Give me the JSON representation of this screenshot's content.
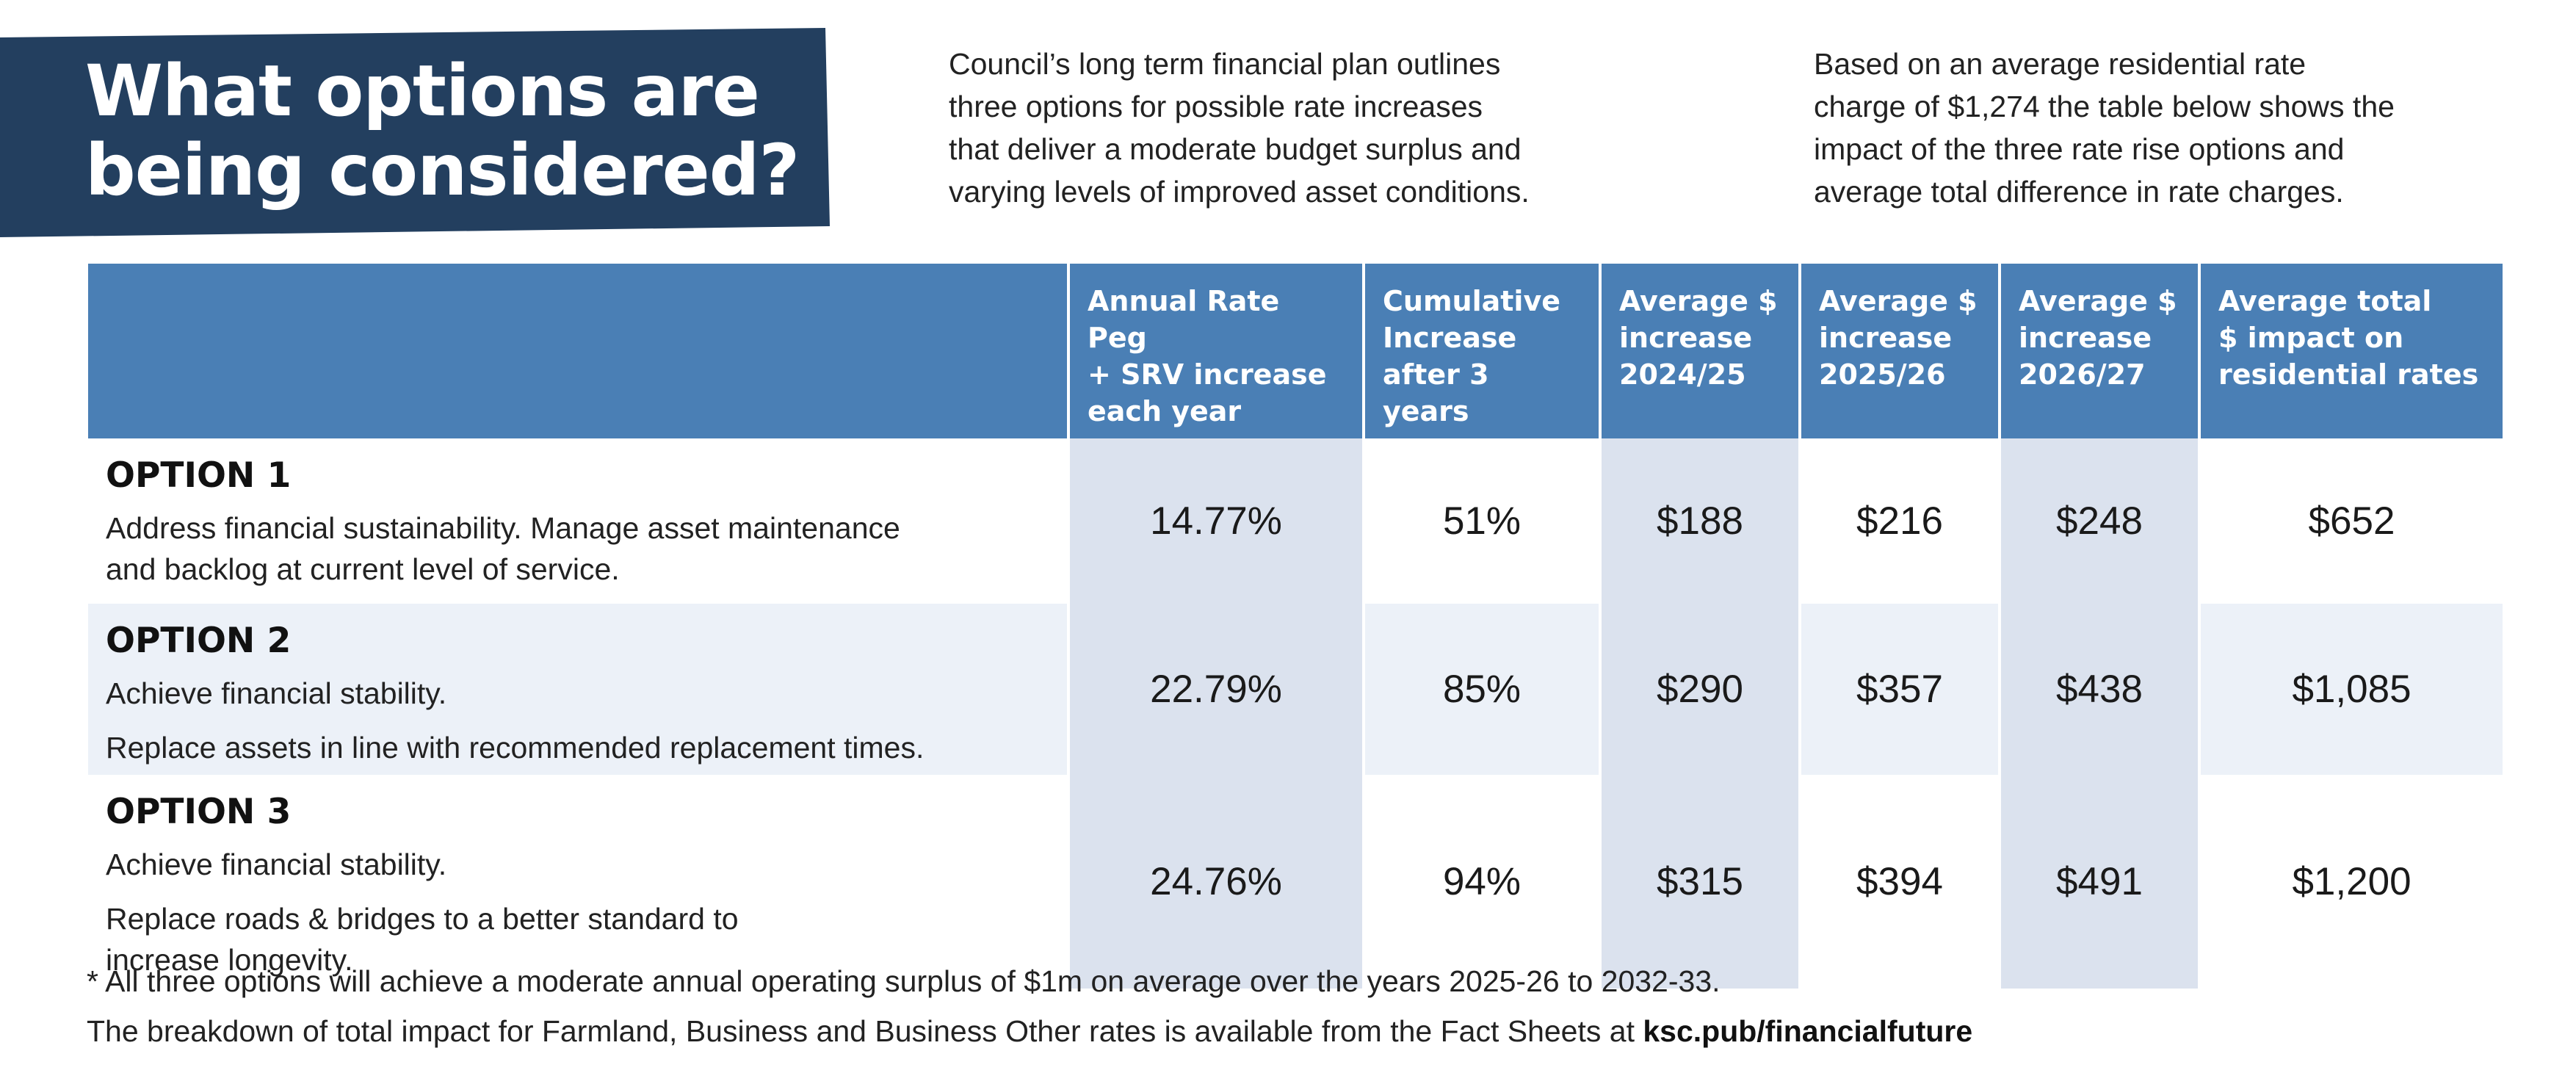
{
  "title": "What options are\nbeing considered?",
  "intro_left": "Council’s long term financial plan outlines\nthree options for possible rate increases\nthat deliver a moderate budget surplus and\nvarying levels of improved asset conditions.",
  "intro_right": "Based on an average residential rate\ncharge of $1,274 the table below shows the\nimpact of the three rate rise options and\naverage total difference in rate charges.",
  "table": {
    "headers": [
      "",
      "Annual Rate Peg\n+ SRV increase\neach year",
      "Cumulative\nIncrease\nafter 3 years",
      "Average $\nincrease\n2024/25",
      "Average $\nincrease\n2025/26",
      "Average $\nincrease\n2026/27",
      "Average total\n$ impact on\nresidential rates"
    ],
    "rows": [
      {
        "name": "OPTION 1",
        "lines": [
          "Address financial sustainability. Manage asset maintenance\nand backlog at current level of service."
        ],
        "values": [
          "14.77%",
          "51%",
          "$188",
          "$216",
          "$248",
          "$652"
        ]
      },
      {
        "name": "OPTION 2",
        "lines": [
          "Achieve financial stability.",
          "Replace assets in line with recommended replacement times."
        ],
        "values": [
          "22.79%",
          "85%",
          "$290",
          "$357",
          "$438",
          "$1,085"
        ]
      },
      {
        "name": "OPTION 3",
        "lines": [
          "Achieve financial stability.",
          "Replace roads & bridges to a better standard to\nincrease longevity."
        ],
        "values": [
          "24.76%",
          "94%",
          "$315",
          "$394",
          "$491",
          "$1,200"
        ]
      }
    ]
  },
  "footnote": "*  All three options will achieve a moderate annual operating surplus of $1m on average over the years 2025-26 to 2032-33.",
  "footer_text": "The breakdown of total impact for Farmland, Business and Business Other rates is available from the Fact Sheets at ",
  "footer_link": "ksc.pub/financialfuture",
  "colors": {
    "banner": "#233f5f",
    "header": "#4a7fb5",
    "shaded_column": "#dbe2ee",
    "row_tint": "#ecf1f8"
  }
}
